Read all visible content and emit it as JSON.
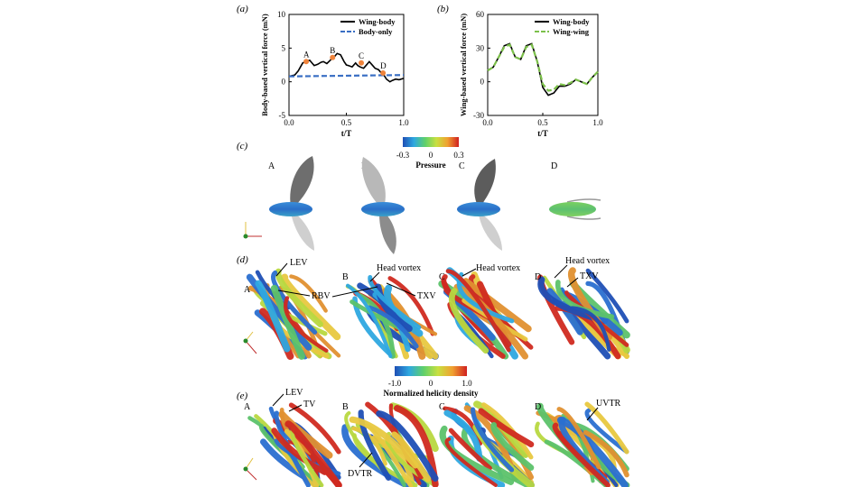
{
  "panels": {
    "a": {
      "letter": "(a)"
    },
    "b": {
      "letter": "(b)"
    },
    "c": {
      "letter": "(c)",
      "colorbar_label": "Pressure",
      "colorbar_ticks": [
        "-0.3",
        "0",
        "0.3"
      ],
      "snapshots": [
        "A",
        "B",
        "C",
        "D"
      ]
    },
    "d": {
      "letter": "(d)",
      "snapshots": [
        "A",
        "B",
        "C",
        "D"
      ],
      "annotations": [
        "LEV",
        "RBV",
        "Head vortex",
        "TXV",
        "Head vortex",
        "Head vortex",
        "TXV"
      ]
    },
    "e": {
      "letter": "(e)",
      "colorbar_label": "Normalized helicity density",
      "colorbar_ticks": [
        "-1.0",
        "0",
        "1.0"
      ],
      "snapshots": [
        "A",
        "B",
        "C",
        "D"
      ],
      "annotations": [
        "LEV",
        "TV",
        "DVTR",
        "UVTR"
      ]
    }
  },
  "chart_data": [
    {
      "type": "line",
      "xlabel": "t/T",
      "ylabel": "Body-based vertical force (mN)",
      "xlim": [
        0,
        1.0
      ],
      "ylim": [
        -5,
        10
      ],
      "xticks": [
        "0.0",
        "0.5",
        "1.0"
      ],
      "yticks": [
        "-5",
        "0",
        "5",
        "10"
      ],
      "legend": "top-right",
      "series": [
        {
          "name": "Wing-body",
          "color": "#000000",
          "x": [
            0.0,
            0.05,
            0.08,
            0.1,
            0.12,
            0.15,
            0.18,
            0.2,
            0.22,
            0.25,
            0.28,
            0.3,
            0.33,
            0.36,
            0.38,
            0.4,
            0.42,
            0.45,
            0.48,
            0.5,
            0.52,
            0.55,
            0.58,
            0.6,
            0.62,
            0.65,
            0.68,
            0.7,
            0.73,
            0.75,
            0.78,
            0.8,
            0.82,
            0.85,
            0.88,
            0.9,
            0.93,
            0.96,
            1.0
          ],
          "y": [
            0.8,
            1.0,
            1.6,
            2.2,
            2.8,
            3.0,
            3.2,
            2.8,
            2.4,
            2.6,
            2.9,
            3.0,
            2.7,
            3.2,
            3.6,
            3.8,
            4.2,
            4.0,
            3.0,
            2.5,
            2.4,
            2.2,
            2.8,
            2.4,
            2.2,
            2.0,
            2.6,
            3.0,
            2.4,
            2.0,
            1.8,
            1.4,
            1.2,
            0.4,
            0.0,
            0.2,
            0.4,
            0.3,
            0.5
          ]
        },
        {
          "name": "Body-only",
          "color": "#3a6fc4",
          "dashed": true,
          "x": [
            0.0,
            1.0
          ],
          "y": [
            0.8,
            1.0
          ]
        }
      ],
      "points": [
        {
          "label": "A",
          "x": 0.15,
          "y": 3.0
        },
        {
          "label": "B",
          "x": 0.38,
          "y": 3.6
        },
        {
          "label": "C",
          "x": 0.63,
          "y": 2.8
        },
        {
          "label": "D",
          "x": 0.82,
          "y": 1.3
        }
      ]
    },
    {
      "type": "line",
      "xlabel": "t/T",
      "ylabel": "Wing-based vertical force (mN)",
      "xlim": [
        0,
        1.0
      ],
      "ylim": [
        -30,
        60
      ],
      "xticks": [
        "0.0",
        "0.5",
        "1.0"
      ],
      "yticks": [
        "-30",
        "0",
        "30",
        "60"
      ],
      "legend": "top-right",
      "series": [
        {
          "name": "Wing-body",
          "color": "#000000",
          "x": [
            0.0,
            0.05,
            0.1,
            0.15,
            0.2,
            0.25,
            0.3,
            0.35,
            0.4,
            0.45,
            0.5,
            0.55,
            0.6,
            0.65,
            0.7,
            0.75,
            0.8,
            0.85,
            0.9,
            0.95,
            1.0
          ],
          "y": [
            10,
            13,
            22,
            32,
            34,
            22,
            20,
            32,
            34,
            18,
            -5,
            -12,
            -10,
            -4,
            -4,
            -2,
            2,
            0,
            -2,
            4,
            9
          ]
        },
        {
          "name": "Wing-wing",
          "color": "#7cc04a",
          "dashed": true,
          "x": [
            0.0,
            0.05,
            0.1,
            0.15,
            0.2,
            0.25,
            0.3,
            0.35,
            0.4,
            0.45,
            0.5,
            0.55,
            0.6,
            0.65,
            0.7,
            0.75,
            0.8,
            0.85,
            0.9,
            0.95,
            1.0
          ],
          "y": [
            10,
            13,
            22,
            31,
            33,
            22,
            20,
            31,
            33,
            18,
            -2,
            -8,
            -7,
            -2,
            -3,
            -1,
            2,
            0,
            -2,
            4,
            9
          ]
        }
      ]
    }
  ]
}
